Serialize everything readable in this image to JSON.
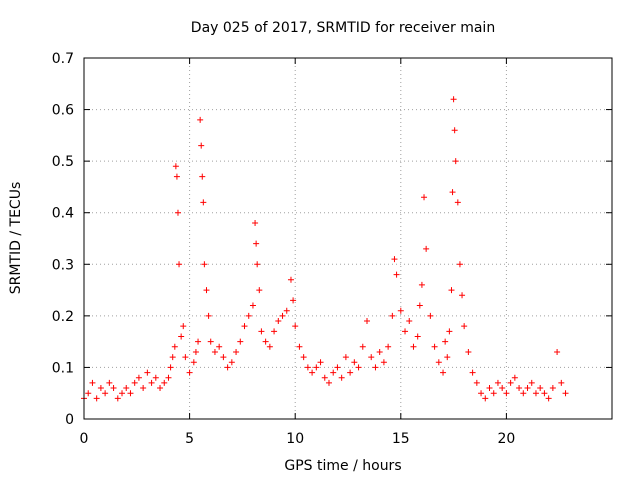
{
  "chart_data": {
    "type": "scatter",
    "title": "Day 025 of 2017, SRMTID for receiver main",
    "xlabel": "GPS time / hours",
    "ylabel": "SRMTID / TECUs",
    "xlim": [
      0,
      25
    ],
    "ylim": [
      0,
      0.7
    ],
    "xticks": [
      0,
      5,
      10,
      15,
      20
    ],
    "xtick_labels": [
      "0",
      "5",
      "10",
      "15",
      "20"
    ],
    "yticks": [
      0,
      0.1,
      0.2,
      0.3,
      0.4,
      0.5,
      0.6,
      0.7
    ],
    "ytick_labels": [
      "0",
      "0.1",
      "0.2",
      "0.3",
      "0.4",
      "0.5",
      "0.6",
      "0.7"
    ],
    "grid": true,
    "marker": "plus",
    "color": "#ff0000",
    "series": [
      {
        "name": "SRMTID",
        "x": [
          0.0,
          0.2,
          0.4,
          0.6,
          0.8,
          1.0,
          1.2,
          1.4,
          1.6,
          1.8,
          2.0,
          2.2,
          2.4,
          2.6,
          2.8,
          3.0,
          3.2,
          3.4,
          3.6,
          3.8,
          4.0,
          4.1,
          4.2,
          4.3,
          4.35,
          4.4,
          4.45,
          4.5,
          4.6,
          4.7,
          4.8,
          5.0,
          5.2,
          5.3,
          5.4,
          5.5,
          5.55,
          5.6,
          5.65,
          5.7,
          5.8,
          5.9,
          6.0,
          6.2,
          6.4,
          6.6,
          6.8,
          7.0,
          7.2,
          7.4,
          7.6,
          7.8,
          8.0,
          8.1,
          8.15,
          8.2,
          8.3,
          8.4,
          8.6,
          8.8,
          9.0,
          9.2,
          9.4,
          9.6,
          9.8,
          9.9,
          10.0,
          10.2,
          10.4,
          10.6,
          10.8,
          11.0,
          11.2,
          11.4,
          11.6,
          11.8,
          12.0,
          12.2,
          12.4,
          12.6,
          12.8,
          13.0,
          13.2,
          13.4,
          13.6,
          13.8,
          14.0,
          14.2,
          14.4,
          14.6,
          14.7,
          14.8,
          15.0,
          15.2,
          15.4,
          15.6,
          15.8,
          15.9,
          16.0,
          16.1,
          16.2,
          16.4,
          16.6,
          16.8,
          17.0,
          17.1,
          17.2,
          17.3,
          17.4,
          17.45,
          17.5,
          17.55,
          17.6,
          17.7,
          17.8,
          17.9,
          18.0,
          18.2,
          18.4,
          18.6,
          18.8,
          19.0,
          19.2,
          19.4,
          19.6,
          19.8,
          20.0,
          20.2,
          20.4,
          20.6,
          20.8,
          21.0,
          21.2,
          21.4,
          21.6,
          21.8,
          22.0,
          22.2,
          22.4,
          22.6,
          22.8
        ],
        "y": [
          0.04,
          0.05,
          0.07,
          0.04,
          0.06,
          0.05,
          0.07,
          0.06,
          0.04,
          0.05,
          0.06,
          0.05,
          0.07,
          0.08,
          0.06,
          0.09,
          0.07,
          0.08,
          0.06,
          0.07,
          0.08,
          0.1,
          0.12,
          0.14,
          0.49,
          0.47,
          0.4,
          0.3,
          0.16,
          0.18,
          0.12,
          0.09,
          0.11,
          0.13,
          0.15,
          0.58,
          0.53,
          0.47,
          0.42,
          0.3,
          0.25,
          0.2,
          0.15,
          0.13,
          0.14,
          0.12,
          0.1,
          0.11,
          0.13,
          0.15,
          0.18,
          0.2,
          0.22,
          0.38,
          0.34,
          0.3,
          0.25,
          0.17,
          0.15,
          0.14,
          0.17,
          0.19,
          0.2,
          0.21,
          0.27,
          0.23,
          0.18,
          0.14,
          0.12,
          0.1,
          0.09,
          0.1,
          0.11,
          0.08,
          0.07,
          0.09,
          0.1,
          0.08,
          0.12,
          0.09,
          0.11,
          0.1,
          0.14,
          0.19,
          0.12,
          0.1,
          0.13,
          0.11,
          0.14,
          0.2,
          0.31,
          0.28,
          0.21,
          0.17,
          0.19,
          0.14,
          0.16,
          0.22,
          0.26,
          0.43,
          0.33,
          0.2,
          0.14,
          0.11,
          0.09,
          0.15,
          0.12,
          0.17,
          0.25,
          0.44,
          0.62,
          0.56,
          0.5,
          0.42,
          0.3,
          0.24,
          0.18,
          0.13,
          0.09,
          0.07,
          0.05,
          0.04,
          0.06,
          0.05,
          0.07,
          0.06,
          0.05,
          0.07,
          0.08,
          0.06,
          0.05,
          0.06,
          0.07,
          0.05,
          0.06,
          0.05,
          0.04,
          0.06,
          0.13,
          0.07,
          0.05
        ]
      }
    ]
  }
}
